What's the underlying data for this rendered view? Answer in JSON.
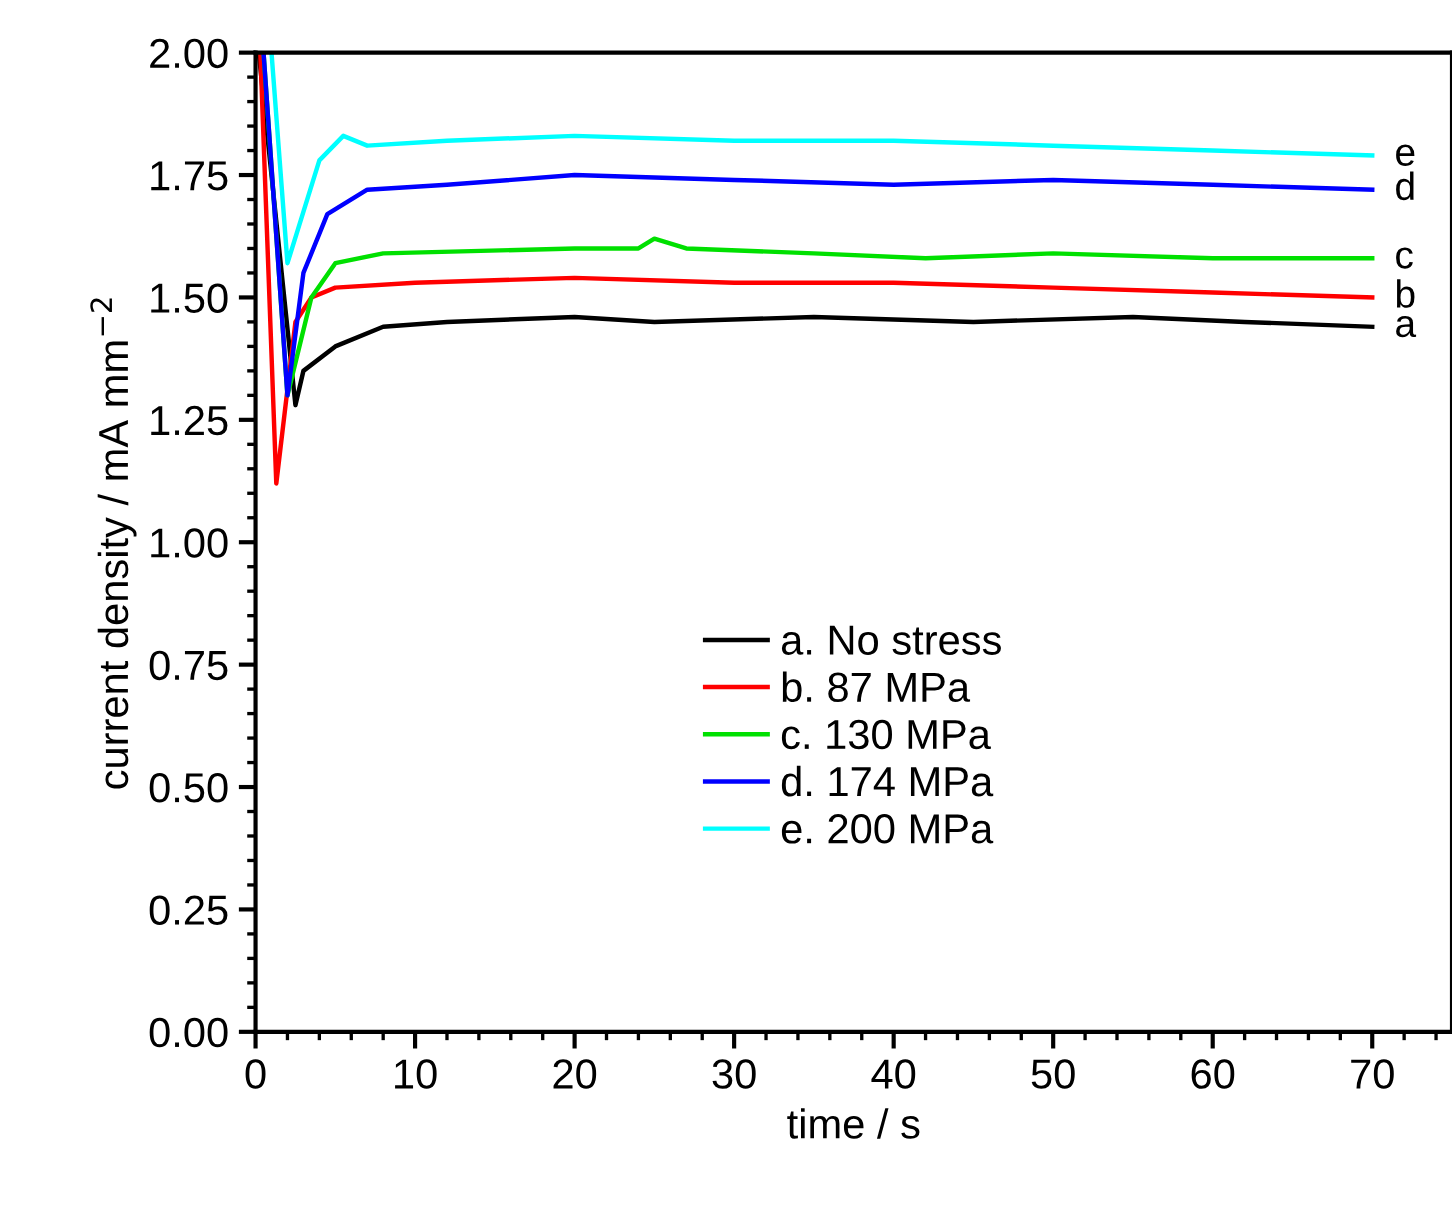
{
  "chart_data": {
    "type": "line",
    "xlabel": "time / s",
    "ylabel": "current density / mA mm$^{−2}$",
    "xlim": [
      0,
      75
    ],
    "ylim": [
      0,
      2
    ],
    "xticks": [
      0,
      10,
      20,
      30,
      40,
      50,
      60,
      70
    ],
    "yticks": [
      {
        "value": 0,
        "label": "0.00"
      },
      {
        "value": 0.25,
        "label": "0.25"
      },
      {
        "value": 0.5,
        "label": "0.50"
      },
      {
        "value": 0.75,
        "label": "0.75"
      },
      {
        "value": 1,
        "label": "1.00"
      },
      {
        "value": 1.25,
        "label": "1.25"
      },
      {
        "value": 1.5,
        "label": "1.50"
      },
      {
        "value": 1.75,
        "label": "1.75"
      },
      {
        "value": 2,
        "label": "2.00"
      }
    ],
    "grid": false,
    "legend": "center",
    "marker": "none",
    "line_style": "solid",
    "series": [
      {
        "name": "a. No stress",
        "color": "#000000",
        "x": [
          0.2,
          2.5,
          3,
          5,
          8,
          12,
          20,
          25,
          35,
          45,
          55,
          62,
          70
        ],
        "values": [
          2.0,
          1.28,
          1.35,
          1.4,
          1.44,
          1.45,
          1.46,
          1.45,
          1.46,
          1.45,
          1.46,
          1.45,
          1.44
        ]
      },
      {
        "name": "b. 87 MPa",
        "color": "#ff0000",
        "x": [
          0.3,
          1.3,
          2.5,
          3.5,
          5,
          10,
          20,
          30,
          40,
          50,
          60,
          70
        ],
        "values": [
          2.0,
          1.12,
          1.45,
          1.5,
          1.52,
          1.53,
          1.54,
          1.53,
          1.53,
          1.52,
          1.51,
          1.5
        ]
      },
      {
        "name": "c. 130 MPa",
        "color": "#00e000",
        "x": [
          0.5,
          2,
          3.5,
          5,
          8,
          20,
          24,
          25,
          27,
          35,
          42,
          50,
          60,
          70
        ],
        "values": [
          2.0,
          1.3,
          1.5,
          1.57,
          1.59,
          1.6,
          1.6,
          1.62,
          1.6,
          1.59,
          1.58,
          1.59,
          1.58,
          1.58
        ]
      },
      {
        "name": "d. 174 MPa",
        "color": "#0000ff",
        "x": [
          0.5,
          2,
          3,
          4.5,
          7,
          12,
          20,
          30,
          40,
          50,
          60,
          70
        ],
        "values": [
          2.0,
          1.3,
          1.55,
          1.67,
          1.72,
          1.73,
          1.75,
          1.74,
          1.73,
          1.74,
          1.73,
          1.72
        ]
      },
      {
        "name": "e. 200 MPa",
        "color": "#00ffff",
        "x": [
          1.0,
          2,
          4,
          5.5,
          7,
          12,
          20,
          30,
          40,
          50,
          60,
          70
        ],
        "values": [
          2.0,
          1.57,
          1.78,
          1.83,
          1.81,
          1.82,
          1.83,
          1.82,
          1.82,
          1.81,
          1.8,
          1.79
        ]
      }
    ],
    "annotations": [
      "a",
      "b",
      "c",
      "d",
      "e"
    ]
  }
}
